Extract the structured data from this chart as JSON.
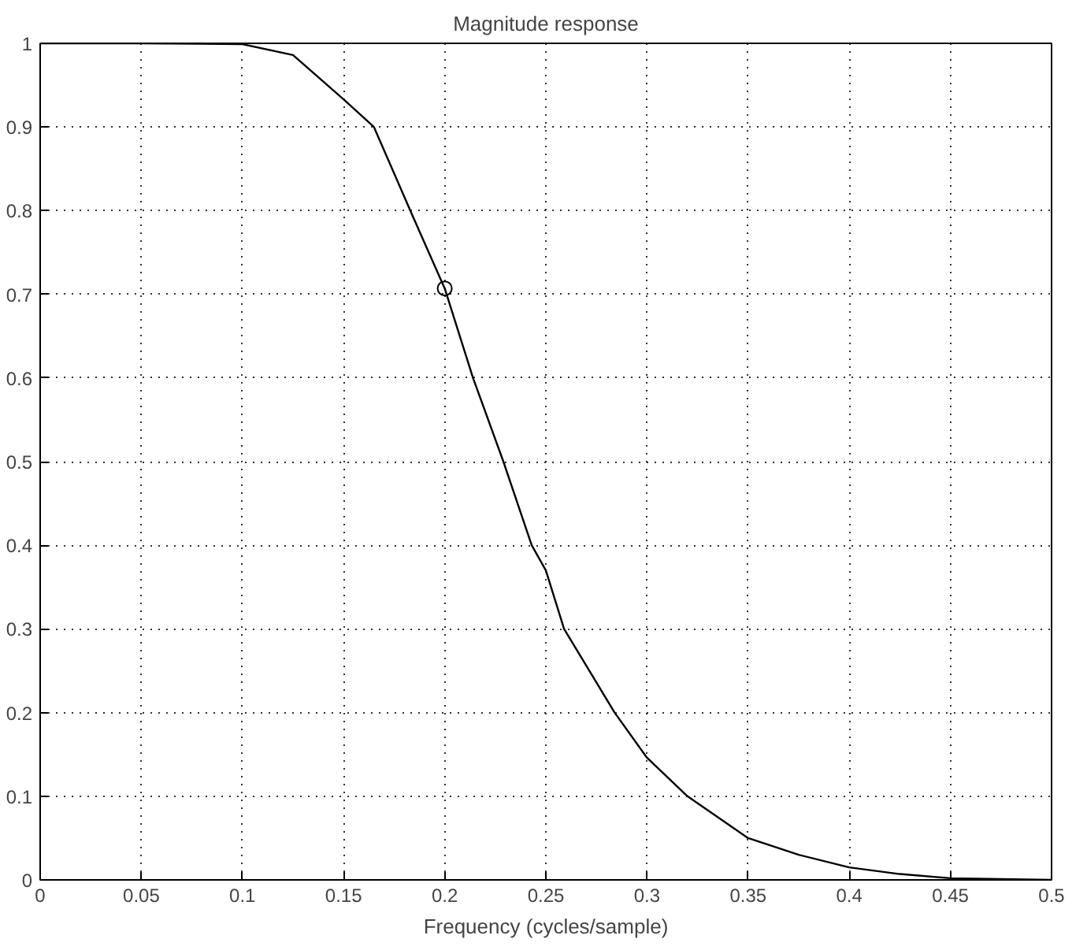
{
  "chart_data": {
    "type": "line",
    "title": "Magnitude response",
    "xlabel": "Frequency (cycles/sample)",
    "x": [
      0,
      0.05,
      0.1,
      0.125,
      0.15,
      0.165,
      0.183,
      0.2,
      0.214,
      0.229,
      0.243,
      0.25,
      0.259,
      0.284,
      0.3,
      0.32,
      0.35,
      0.375,
      0.4,
      0.425,
      0.45,
      0.475,
      0.5
    ],
    "series": [
      {
        "color": "#000000",
        "values": [
          1,
          1,
          0.999,
          0.986,
          0.933,
          0.9,
          0.8,
          0.707,
          0.6,
          0.5,
          0.4,
          0.37,
          0.3,
          0.2,
          0.146,
          0.1,
          0.05,
          0.03,
          0.015,
          0.007,
          0.002,
          0.001,
          0
        ],
        "marker": "none",
        "line_style": "solid"
      },
      {
        "type": "scatter",
        "color": "#000000",
        "x": [
          0.2
        ],
        "values": [
          0.707
        ],
        "marker": "circle"
      }
    ],
    "xlim": [
      0,
      0.5
    ],
    "xticks": [
      0,
      0.05,
      0.1,
      0.15,
      0.2,
      0.25,
      0.3,
      0.35,
      0.4,
      0.45,
      0.5
    ],
    "ylim": [
      0,
      1
    ],
    "yticks": [
      0,
      0.1,
      0.2,
      0.3,
      0.4,
      0.5,
      0.6,
      0.7,
      0.8,
      0.9,
      1
    ],
    "grid": true
  }
}
